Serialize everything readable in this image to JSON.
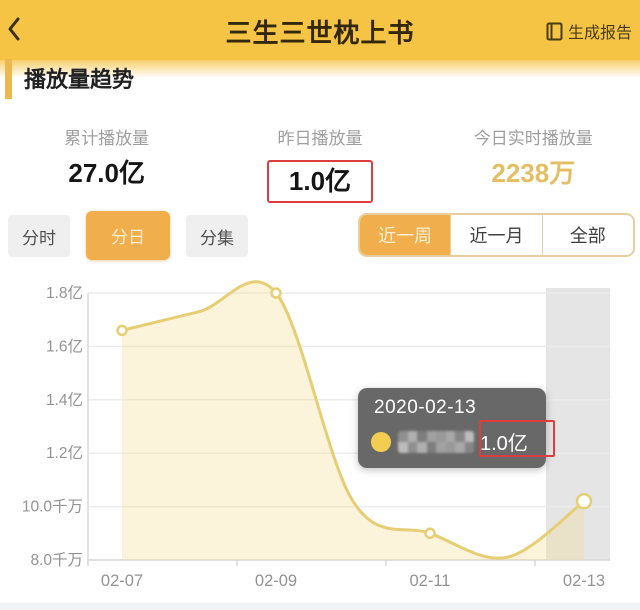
{
  "header": {
    "title": "三生三世枕上书",
    "report_button": "生成报告"
  },
  "section": {
    "title": "播放量趋势"
  },
  "stats": {
    "items": [
      {
        "label": "累计播放量",
        "value": "27.0亿"
      },
      {
        "label": "昨日播放量",
        "value": "1.0亿",
        "boxed": true
      },
      {
        "label": "今日实时播放量",
        "value": "2238万",
        "accent": true
      }
    ]
  },
  "mode_tabs": {
    "items": [
      {
        "label": "分时",
        "active": false
      },
      {
        "label": "分日",
        "active": true
      },
      {
        "label": "分集",
        "active": false
      }
    ]
  },
  "range_tabs": {
    "items": [
      {
        "label": "近一周",
        "active": true
      },
      {
        "label": "近一月",
        "active": false
      },
      {
        "label": "全部",
        "active": false
      }
    ]
  },
  "chart_data": {
    "type": "line",
    "title": "播放量趋势 (分日 / 近一周)",
    "x": [
      "02-07",
      "02-08",
      "02-09",
      "02-10",
      "02-11",
      "02-12",
      "02-13"
    ],
    "series": [
      {
        "name_censored": true,
        "unit": "亿",
        "values": [
          1.66,
          1.73,
          1.8,
          1.02,
          0.9,
          0.81,
          1.02
        ]
      }
    ],
    "ylim": [
      0.8,
      1.8
    ],
    "y_ticks": [
      {
        "label": "1.8亿",
        "value": 1.8
      },
      {
        "label": "1.6亿",
        "value": 1.6
      },
      {
        "label": "1.4亿",
        "value": 1.4
      },
      {
        "label": "1.2亿",
        "value": 1.2
      },
      {
        "label": "10.0千万",
        "value": 1.0
      },
      {
        "label": "8.0千万",
        "value": 0.8
      }
    ],
    "x_tick_labels": [
      "02-07",
      "02-09",
      "02-11",
      "02-13"
    ],
    "grid": true,
    "smooth": true,
    "marker_indices": [
      0,
      2,
      4,
      6
    ],
    "highlight_index": 6,
    "tooltip": {
      "date": "2020-02-13",
      "value": "1.0亿"
    }
  },
  "colors": {
    "header_bg": "#F5C445",
    "accent": "#F0AE4C",
    "gold": "#E4BE63",
    "red": "#DD3D3D",
    "line": "#E6CE74",
    "area": "rgba(244,222,146,0.33)",
    "band": "rgba(160,160,160,0.28)",
    "grid": "#ECECEC",
    "axis": "#D8D8D8",
    "axis_text": "#939393",
    "tooltip_bg": "rgba(92,92,92,0.93)",
    "tooltip_dot": "#F3CC52"
  },
  "decor": {
    "header_mosaic_palette": [
      "#201C17",
      "#3C362C",
      "#565043",
      "#2B2620",
      "#161310",
      "#4A4336",
      "#332E25",
      "#5D5748",
      "#25211A",
      "#413B30"
    ],
    "tooltip_mosaic_palette": [
      "#8F8F8F",
      "#A8A8A8",
      "#7D7D7D",
      "#BCBCBC",
      "#999999",
      "#B0B0B0",
      "#868686",
      "#A1A1A1"
    ]
  }
}
